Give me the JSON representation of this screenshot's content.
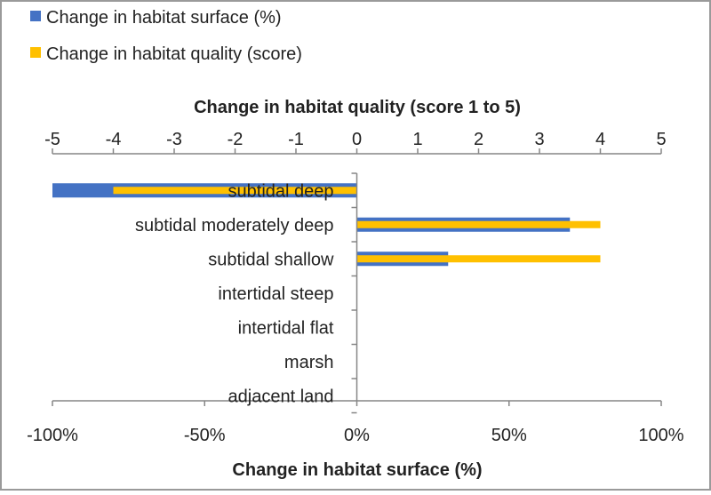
{
  "chart_data": {
    "type": "bar",
    "orientation": "horizontal",
    "categories": [
      "subtidal deep",
      "subtidal moderately deep",
      "subtidal shallow",
      "intertidal steep",
      "intertidal flat",
      "marsh",
      "adjacent land"
    ],
    "series": [
      {
        "name": "Change in habitat surface (%)",
        "axis": "bottom",
        "color": "#4472C4",
        "values": [
          -100,
          70,
          30,
          0,
          0,
          0,
          0
        ]
      },
      {
        "name": "Change in habitat quality (score)",
        "axis": "top",
        "color": "#FFC000",
        "values": [
          -4,
          4,
          4,
          0,
          0,
          0,
          0
        ]
      }
    ],
    "x_bottom": {
      "label": "Change in habitat surface (%)",
      "range": [
        -100,
        100
      ],
      "ticks": [
        -100,
        -50,
        0,
        50,
        100
      ],
      "tick_labels": [
        "-100%",
        "-50%",
        "0%",
        "50%",
        "100%"
      ]
    },
    "x_top": {
      "label": "Change in habitat quality (score 1 to 5)",
      "range": [
        -5,
        5
      ],
      "ticks": [
        -5,
        -4,
        -3,
        -2,
        -1,
        0,
        1,
        2,
        3,
        4,
        5
      ],
      "tick_labels": [
        "-5",
        "-4",
        "-3",
        "-2",
        "-1",
        "0",
        "1",
        "2",
        "3",
        "4",
        "5"
      ]
    },
    "grid": false,
    "legend_position": "top-left"
  }
}
